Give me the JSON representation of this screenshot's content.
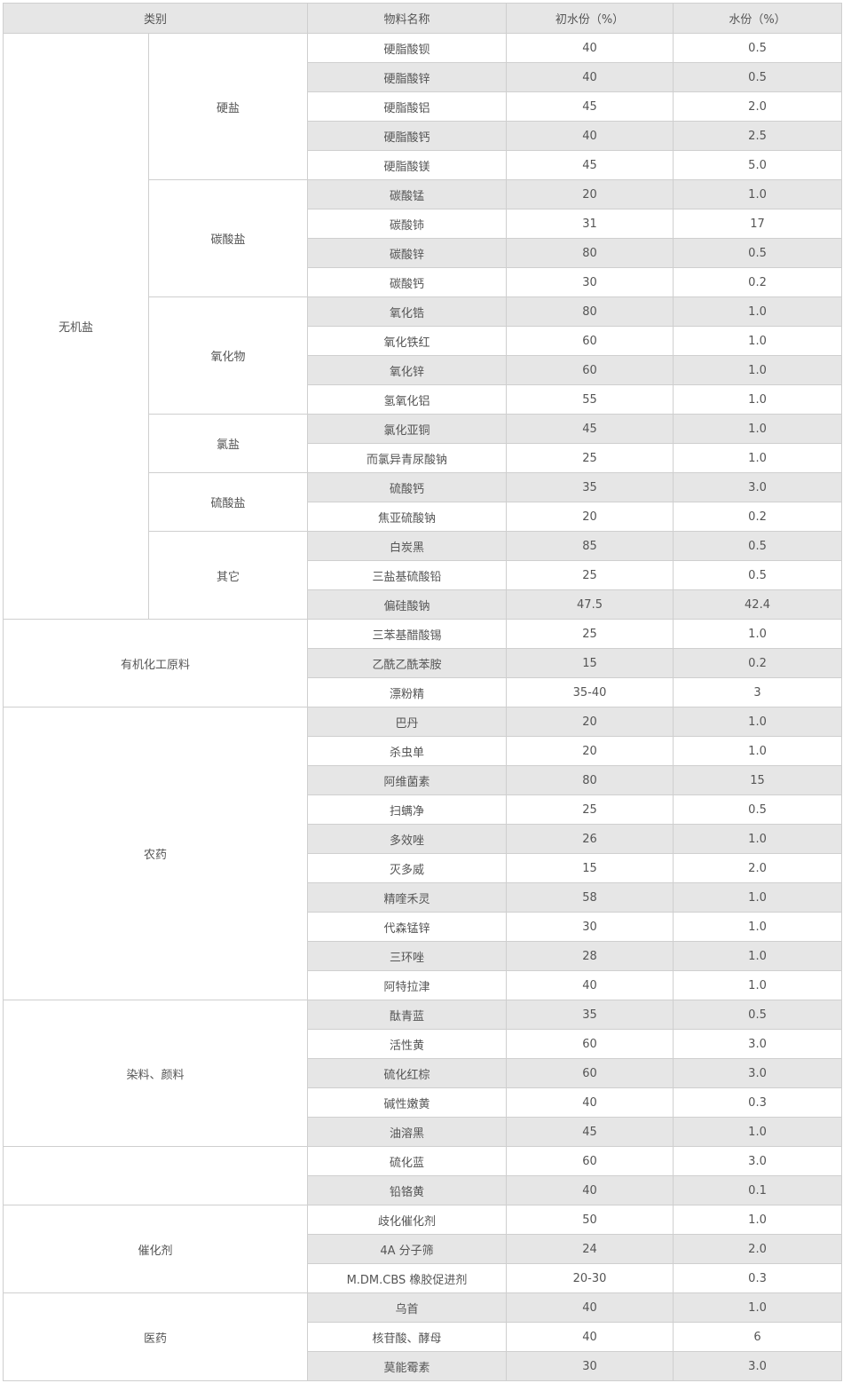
{
  "header": {
    "category": "类别",
    "material": "物料名称",
    "initial_moisture": "初水份（%）",
    "moisture": "水份（%）"
  },
  "groups": [
    {
      "category": "无机盐",
      "subgroups": [
        {
          "name": "硬盐",
          "rows": [
            [
              "硬脂酸钡",
              "40",
              "0.5"
            ],
            [
              "硬脂酸锌",
              "40",
              "0.5"
            ],
            [
              "硬脂酸铝",
              "45",
              "2.0"
            ],
            [
              "硬脂酸钙",
              "40",
              "2.5"
            ],
            [
              "硬脂酸镁",
              "45",
              "5.0"
            ]
          ]
        },
        {
          "name": "碳酸盐",
          "rows": [
            [
              "碳酸锰",
              "20",
              "1.0"
            ],
            [
              "碳酸铈",
              "31",
              "17"
            ],
            [
              "碳酸锌",
              "80",
              "0.5"
            ],
            [
              "碳酸钙",
              "30",
              "0.2"
            ]
          ]
        },
        {
          "name": "氧化物",
          "rows": [
            [
              "氧化锆",
              "80",
              "1.0"
            ],
            [
              "氧化铁红",
              "60",
              "1.0"
            ],
            [
              "氧化锌",
              "60",
              "1.0"
            ],
            [
              "氢氧化铝",
              "55",
              "1.0"
            ]
          ]
        },
        {
          "name": "氯盐",
          "rows": [
            [
              "氯化亚铜",
              "45",
              "1.0"
            ],
            [
              "而氯异青尿酸钠",
              "25",
              "1.0"
            ]
          ]
        },
        {
          "name": "硫酸盐",
          "rows": [
            [
              "硫酸钙",
              "35",
              "3.0"
            ],
            [
              "焦亚硫酸钠",
              "20",
              "0.2"
            ]
          ]
        },
        {
          "name": "其它",
          "rows": [
            [
              "白炭黑",
              "85",
              "0.5"
            ],
            [
              "三盐基硫酸铅",
              "25",
              "0.5"
            ],
            [
              "偏硅酸钠",
              "47.5",
              "42.4"
            ]
          ]
        }
      ]
    },
    {
      "category": "有机化工原料",
      "rows": [
        [
          "三苯基醋酸锡",
          "25",
          "1.0"
        ],
        [
          "乙酰乙酰苯胺",
          "15",
          "0.2"
        ],
        [
          "漂粉精",
          "35-40",
          "3"
        ]
      ]
    },
    {
      "category": "农药",
      "rows": [
        [
          "巴丹",
          "20",
          "1.0"
        ],
        [
          "杀虫单",
          "20",
          "1.0"
        ],
        [
          "阿维菌素",
          "80",
          "15"
        ],
        [
          "扫螨净",
          "25",
          "0.5"
        ],
        [
          "多效唑",
          "26",
          "1.0"
        ],
        [
          "灭多威",
          "15",
          "2.0"
        ],
        [
          "精喹禾灵",
          "58",
          "1.0"
        ],
        [
          "代森锰锌",
          "30",
          "1.0"
        ],
        [
          "三环唑",
          "28",
          "1.0"
        ],
        [
          "阿特拉津",
          "40",
          "1.0"
        ]
      ]
    },
    {
      "category": "染料、颜料",
      "rows": [
        [
          "酞青蓝",
          "35",
          "0.5"
        ],
        [
          "活性黄",
          "60",
          "3.0"
        ],
        [
          "硫化红棕",
          "60",
          "3.0"
        ],
        [
          "碱性嫩黄",
          "40",
          "0.3"
        ],
        [
          "油溶黑",
          "45",
          "1.0"
        ]
      ]
    },
    {
      "category": "",
      "rows": [
        [
          "硫化蓝",
          "60",
          "3.0"
        ],
        [
          "铅铬黄",
          "40",
          "0.1"
        ]
      ]
    },
    {
      "category": "催化剂",
      "rows": [
        [
          "歧化催化剂",
          "50",
          "1.0"
        ],
        [
          "4A 分子筛",
          "24",
          "2.0"
        ],
        [
          "M.DM.CBS 橡胶促进剂",
          "20-30",
          "0.3"
        ]
      ]
    },
    {
      "category": "医药",
      "rows": [
        [
          "乌首",
          "40",
          "1.0"
        ],
        [
          "核苷酸、酵母",
          "40",
          "6"
        ],
        [
          "莫能霉素",
          "30",
          "3.0"
        ]
      ]
    }
  ]
}
